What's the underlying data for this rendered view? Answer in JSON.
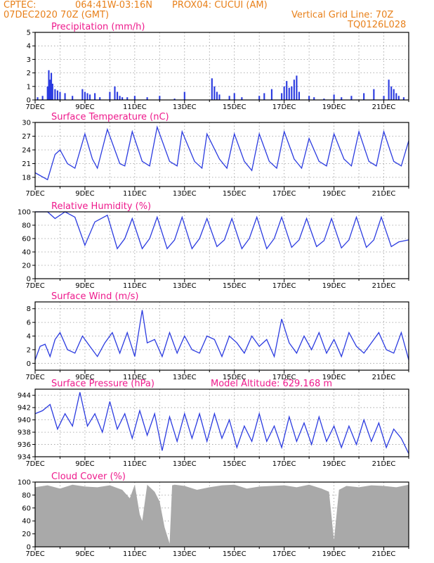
{
  "header": {
    "source": "CPTEC:",
    "coords": "064:41W-03:16N",
    "location": "PROX04: CUCUI (AM)",
    "date": "07DEC2020 70Z (GMT)",
    "grid_note": "Vertical Grid Line: 70Z",
    "code": "TQ0126L028"
  },
  "colors": {
    "series": "#2b3be0",
    "title": "#ee1a8c",
    "header": "#e8801a",
    "cloud": "#a9a9a9"
  },
  "x_labels": [
    "7DEC",
    "9DEC",
    "11DEC",
    "13DEC",
    "15DEC",
    "17DEC",
    "19DEC",
    "21DEC"
  ],
  "chart_data": [
    {
      "type": "bar",
      "title": "Precipitation (mm/h)",
      "ylim": [
        0,
        5
      ],
      "yticks": [
        "0",
        "1",
        "2",
        "3",
        "4",
        "5"
      ],
      "x": [
        7.1,
        7.3,
        7.5,
        7.55,
        7.6,
        7.65,
        7.7,
        7.8,
        7.9,
        8.0,
        8.2,
        8.5,
        8.9,
        9.0,
        9.1,
        9.2,
        9.4,
        9.6,
        10.0,
        10.2,
        10.3,
        10.4,
        10.5,
        10.7,
        11.0,
        11.5,
        12.0,
        12.6,
        13.0,
        14.1,
        14.2,
        14.3,
        14.4,
        14.8,
        15.0,
        15.3,
        16.0,
        16.2,
        16.5,
        16.9,
        17.0,
        17.1,
        17.2,
        17.3,
        17.4,
        17.5,
        17.6,
        18.0,
        18.2,
        18.6,
        19.0,
        19.3,
        19.7,
        20.2,
        20.6,
        21.0,
        21.2,
        21.3,
        21.4,
        21.5,
        21.6,
        21.8
      ],
      "values": [
        0.2,
        0.3,
        1.0,
        2.2,
        1.5,
        2.0,
        1.2,
        0.8,
        0.7,
        0.6,
        0.5,
        0.3,
        0.8,
        0.6,
        0.5,
        0.4,
        0.5,
        0.2,
        0.6,
        1.0,
        0.6,
        0.3,
        0.2,
        0.2,
        0.3,
        0.2,
        0.3,
        0.1,
        0.6,
        1.6,
        1.0,
        0.6,
        0.4,
        0.3,
        0.5,
        0.2,
        0.3,
        0.5,
        0.8,
        0.5,
        1.0,
        1.4,
        0.9,
        1.0,
        1.5,
        1.8,
        0.6,
        0.3,
        0.2,
        0.1,
        0.4,
        0.2,
        0.3,
        0.5,
        0.8,
        0.3,
        1.5,
        1.0,
        0.8,
        0.5,
        0.3,
        0.2
      ]
    },
    {
      "type": "line",
      "title": "Surface Temperature (nC)",
      "ylim": [
        16,
        30
      ],
      "yticks": [
        "18",
        "21",
        "24",
        "27",
        "30"
      ],
      "x": [
        7.0,
        7.5,
        7.8,
        8.0,
        8.3,
        8.6,
        9.0,
        9.3,
        9.5,
        9.9,
        10.4,
        10.6,
        10.9,
        11.3,
        11.6,
        11.9,
        12.4,
        12.7,
        12.9,
        13.4,
        13.7,
        13.9,
        14.4,
        14.7,
        15.0,
        15.4,
        15.7,
        16.0,
        16.4,
        16.7,
        17.0,
        17.4,
        17.7,
        18.0,
        18.4,
        18.7,
        19.0,
        19.4,
        19.7,
        20.0,
        20.4,
        20.7,
        21.0,
        21.4,
        21.7,
        22.0
      ],
      "values": [
        19.0,
        17.5,
        23.0,
        24.0,
        21.0,
        20.0,
        27.5,
        22.0,
        20.0,
        28.5,
        21.0,
        20.5,
        28.0,
        21.5,
        20.5,
        29.0,
        21.5,
        20.5,
        28.0,
        21.5,
        20.0,
        27.5,
        22.0,
        20.0,
        27.5,
        21.5,
        19.5,
        27.5,
        21.5,
        20.0,
        28.0,
        22.0,
        20.0,
        26.5,
        21.5,
        20.5,
        27.5,
        22.0,
        20.5,
        28.0,
        21.5,
        20.5,
        28.0,
        21.5,
        20.5,
        26.0
      ]
    },
    {
      "type": "line",
      "title": "Relative Humidity (%)",
      "ylim": [
        0,
        100
      ],
      "yticks": [
        "0",
        "20",
        "40",
        "60",
        "80",
        "100"
      ],
      "x": [
        7.0,
        7.5,
        7.8,
        8.2,
        8.6,
        9.0,
        9.4,
        9.9,
        10.3,
        10.6,
        10.9,
        11.3,
        11.6,
        11.9,
        12.3,
        12.6,
        12.9,
        13.3,
        13.6,
        13.9,
        14.3,
        14.6,
        14.9,
        15.3,
        15.6,
        15.9,
        16.3,
        16.6,
        16.9,
        17.3,
        17.6,
        17.9,
        18.3,
        18.6,
        18.9,
        19.3,
        19.6,
        19.9,
        20.3,
        20.6,
        20.9,
        21.3,
        21.6,
        22.0
      ],
      "values": [
        100,
        100,
        90,
        100,
        92,
        50,
        85,
        95,
        45,
        60,
        90,
        45,
        60,
        92,
        45,
        58,
        92,
        45,
        60,
        90,
        48,
        58,
        90,
        45,
        60,
        92,
        45,
        60,
        92,
        47,
        58,
        90,
        48,
        57,
        90,
        46,
        58,
        92,
        47,
        58,
        92,
        48,
        55,
        58
      ]
    },
    {
      "type": "line",
      "title": "Surface Wind (m/s)",
      "ylim": [
        -1,
        9
      ],
      "yticks": [
        "0",
        "2",
        "4",
        "6",
        "8"
      ],
      "x": [
        7.0,
        7.2,
        7.4,
        7.6,
        7.8,
        8.0,
        8.3,
        8.6,
        8.9,
        9.2,
        9.5,
        9.8,
        10.1,
        10.4,
        10.7,
        11.0,
        11.3,
        11.5,
        11.8,
        12.1,
        12.4,
        12.7,
        13.0,
        13.3,
        13.6,
        13.9,
        14.2,
        14.5,
        14.8,
        15.1,
        15.4,
        15.7,
        16.0,
        16.3,
        16.6,
        16.9,
        17.2,
        17.5,
        17.8,
        18.1,
        18.4,
        18.7,
        19.0,
        19.3,
        19.6,
        19.9,
        20.2,
        20.5,
        20.8,
        21.1,
        21.4,
        21.7,
        22.0
      ],
      "values": [
        0.5,
        2.5,
        2.8,
        1.0,
        3.5,
        4.5,
        2.0,
        1.5,
        4.0,
        2.5,
        1.0,
        3.0,
        4.5,
        1.5,
        4.5,
        1.0,
        7.8,
        3.0,
        3.5,
        1.0,
        4.5,
        1.5,
        4.0,
        2.0,
        1.5,
        4.0,
        3.5,
        1.0,
        4.0,
        3.0,
        1.5,
        4.0,
        2.5,
        3.5,
        1.0,
        6.5,
        3.0,
        1.5,
        4.0,
        2.0,
        4.5,
        1.5,
        3.5,
        1.0,
        4.5,
        2.5,
        1.5,
        3.0,
        4.5,
        2.0,
        1.5,
        4.5,
        0.5
      ]
    },
    {
      "type": "line",
      "title": "Surface Pressure (hPa)",
      "annotation": "Model Altitude: 629.168 m",
      "ylim": [
        934,
        945
      ],
      "yticks": [
        "934",
        "936",
        "938",
        "940",
        "942",
        "944"
      ],
      "x": [
        7.0,
        7.3,
        7.6,
        7.9,
        8.2,
        8.5,
        8.8,
        9.1,
        9.4,
        9.7,
        10.0,
        10.3,
        10.6,
        10.9,
        11.2,
        11.5,
        11.8,
        12.1,
        12.4,
        12.7,
        13.0,
        13.3,
        13.6,
        13.9,
        14.2,
        14.5,
        14.8,
        15.1,
        15.4,
        15.7,
        16.0,
        16.3,
        16.6,
        16.9,
        17.2,
        17.5,
        17.8,
        18.1,
        18.4,
        18.7,
        19.0,
        19.3,
        19.6,
        19.9,
        20.2,
        20.5,
        20.8,
        21.1,
        21.4,
        21.7,
        22.0
      ],
      "values": [
        941,
        941.5,
        942.5,
        938.5,
        941,
        939,
        944.5,
        939,
        941,
        938,
        943,
        938.5,
        941,
        937,
        941.5,
        937.5,
        941,
        935,
        940.5,
        936.5,
        941,
        937,
        941,
        936.5,
        941,
        937,
        940,
        935.5,
        939,
        936.5,
        941,
        936.5,
        939,
        935.5,
        940.5,
        936.5,
        939.5,
        936,
        940.5,
        936.5,
        939,
        935.5,
        939,
        936,
        940,
        936.5,
        939.5,
        935.5,
        938.5,
        937,
        934.5
      ]
    },
    {
      "type": "area",
      "title": "Cloud Cover (%)",
      "ylim": [
        0,
        100
      ],
      "yticks": [
        "0",
        "20",
        "40",
        "60",
        "80",
        "100"
      ],
      "x": [
        7.0,
        7.5,
        8.0,
        8.5,
        9.0,
        9.5,
        10.0,
        10.5,
        10.8,
        11.0,
        11.2,
        11.3,
        11.5,
        11.8,
        12.0,
        12.2,
        12.4,
        12.5,
        12.6,
        13.0,
        13.5,
        14.0,
        14.5,
        15.0,
        15.5,
        16.0,
        16.5,
        17.0,
        17.5,
        18.0,
        18.5,
        18.8,
        19.0,
        19.2,
        19.5,
        20.0,
        20.5,
        21.0,
        21.5,
        22.0
      ],
      "values": [
        92,
        95,
        90,
        96,
        93,
        92,
        95,
        88,
        75,
        96,
        50,
        40,
        96,
        85,
        70,
        30,
        5,
        95,
        96,
        94,
        88,
        92,
        95,
        96,
        90,
        93,
        94,
        95,
        92,
        96,
        90,
        85,
        10,
        88,
        94,
        92,
        95,
        94,
        92,
        96
      ]
    }
  ]
}
